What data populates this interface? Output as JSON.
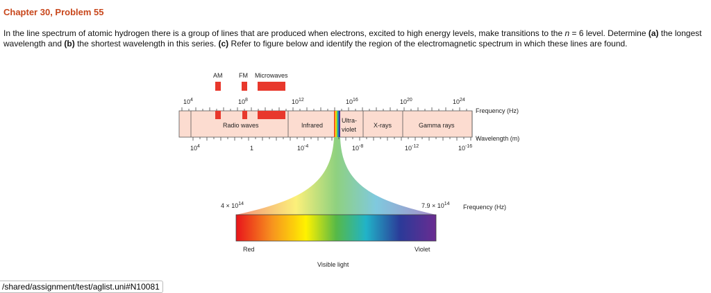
{
  "header": {
    "title": "Chapter 30, Problem 55"
  },
  "problem": {
    "parts": [
      "In the line spectrum of atomic hydrogen there is a group of lines that are produced when electrons, excited to high energy levels, make transitions to the ",
      "n",
      " = 6 level. Determine ",
      "(a)",
      " the longest wavelength and ",
      "(b)",
      " the shortest wavelength in this series. ",
      "(c)",
      " Refer to figure below and identify the region of the electromagnetic spectrum in which these lines are found."
    ]
  },
  "figure": {
    "top_labels": [
      "AM",
      "FM",
      "Microwaves"
    ],
    "frequency_ticks": [
      {
        "base": "10",
        "exp": "4"
      },
      {
        "base": "10",
        "exp": "8"
      },
      {
        "base": "10",
        "exp": "12"
      },
      {
        "base": "10",
        "exp": "16"
      },
      {
        "base": "10",
        "exp": "20"
      },
      {
        "base": "10",
        "exp": "24"
      }
    ],
    "frequency_axis": "Frequency (Hz)",
    "wavelength_ticks": [
      {
        "base": "10",
        "exp": "4"
      },
      {
        "base": "1",
        "exp": ""
      },
      {
        "base": "10",
        "exp": "-4"
      },
      {
        "base": "10",
        "exp": "-8"
      },
      {
        "base": "10",
        "exp": "-12"
      },
      {
        "base": "10",
        "exp": "-16"
      }
    ],
    "wavelength_axis": "Wavelength (m)",
    "bands": [
      "Radio waves",
      "Infrared",
      "Ultra-",
      "violet",
      "X-rays",
      "Gamma rays"
    ],
    "visible_low": {
      "base": "4 × 10",
      "exp": "14"
    },
    "visible_high": {
      "base": "7.9 × 10",
      "exp": "14"
    },
    "visible_axis": "Frequency (Hz)",
    "red": "Red",
    "violet": "Violet",
    "visible": "Visible light"
  },
  "footer": {
    "url": "/shared/assignment/test/aglist.uni#N10081"
  }
}
